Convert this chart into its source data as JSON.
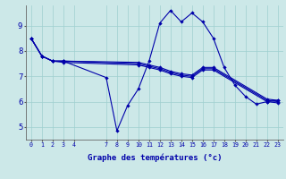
{
  "title": "Graphe des températures (°c)",
  "bg_color": "#cce8e8",
  "grid_color": "#9fcfcf",
  "line_color": "#0000aa",
  "axis_color": "#555555",
  "xlim": [
    -0.5,
    23.5
  ],
  "ylim": [
    4.5,
    9.8
  ],
  "xtick_positions": [
    0,
    1,
    2,
    3,
    4,
    7,
    8,
    9,
    10,
    11,
    12,
    13,
    14,
    15,
    16,
    17,
    18,
    19,
    20,
    21,
    22,
    23
  ],
  "xtick_labels": [
    "0",
    "1",
    "2",
    "3",
    "4",
    "7",
    "8",
    "9",
    "10",
    "11",
    "12",
    "13",
    "14",
    "15",
    "16",
    "17",
    "18",
    "19",
    "20",
    "21",
    "22",
    "23"
  ],
  "yticks": [
    5,
    6,
    7,
    8,
    9
  ],
  "line1_x": [
    0,
    1,
    2,
    3,
    10,
    11,
    12,
    13,
    14,
    15,
    16,
    17,
    22,
    23
  ],
  "line1_y": [
    8.5,
    7.8,
    7.6,
    7.6,
    7.55,
    7.45,
    7.35,
    7.2,
    7.1,
    7.05,
    7.35,
    7.35,
    6.1,
    6.05
  ],
  "line2_x": [
    0,
    1,
    2,
    3,
    10,
    11,
    12,
    13,
    14,
    15,
    16,
    17,
    22,
    23
  ],
  "line2_y": [
    8.5,
    7.8,
    7.6,
    7.6,
    7.5,
    7.4,
    7.3,
    7.15,
    7.05,
    7.0,
    7.3,
    7.3,
    6.05,
    6.0
  ],
  "line3_x": [
    0,
    1,
    2,
    3,
    7,
    8,
    9,
    10,
    11,
    12,
    13,
    14,
    15,
    16,
    17,
    18,
    19,
    20,
    21,
    22,
    23
  ],
  "line3_y": [
    8.5,
    7.8,
    7.6,
    7.6,
    6.95,
    4.85,
    5.85,
    6.5,
    7.6,
    9.1,
    9.6,
    9.15,
    9.5,
    9.15,
    8.5,
    7.35,
    6.65,
    6.2,
    5.9,
    6.0,
    6.05
  ],
  "line4_x": [
    0,
    1,
    2,
    3,
    10,
    11,
    12,
    13,
    14,
    15,
    16,
    17,
    22,
    23
  ],
  "line4_y": [
    8.5,
    7.8,
    7.6,
    7.55,
    7.45,
    7.35,
    7.25,
    7.1,
    7.0,
    6.95,
    7.25,
    7.25,
    6.0,
    5.95
  ]
}
